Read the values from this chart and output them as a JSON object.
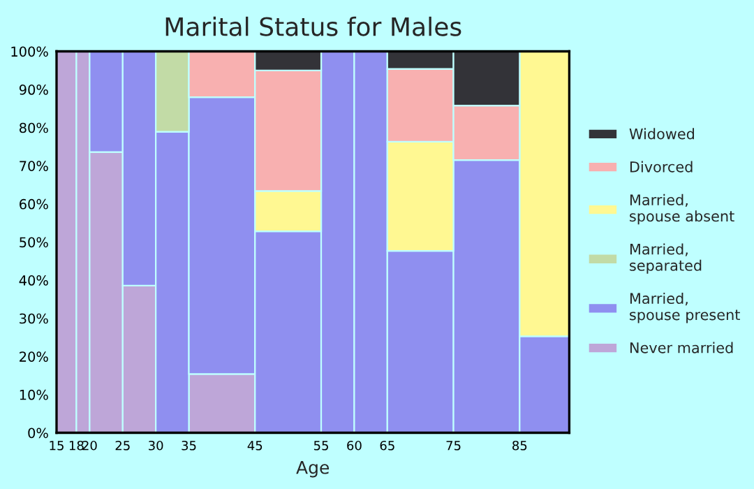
{
  "chart_data": {
    "type": "bar",
    "title": "Marital Status for Males",
    "xlabel": "Age",
    "stacked": true,
    "x": [
      16.5,
      19,
      22.5,
      27.5,
      32.5,
      40,
      50,
      57.5,
      62.5,
      70,
      80,
      88.75
    ],
    "xlim": [
      15,
      92.5
    ],
    "xticks": [
      15,
      18,
      20,
      25,
      30,
      35,
      45,
      55,
      60,
      65,
      75,
      85
    ],
    "ylim": [
      0,
      100
    ],
    "yticks": [
      {
        "value": 0,
        "label": "0%"
      },
      {
        "value": 10,
        "label": "10%"
      },
      {
        "value": 20,
        "label": "20%"
      },
      {
        "value": 30,
        "label": "30%"
      },
      {
        "value": 40,
        "label": "40%"
      },
      {
        "value": 50,
        "label": "50%"
      },
      {
        "value": 60,
        "label": "60%"
      },
      {
        "value": 70,
        "label": "70%"
      },
      {
        "value": 80,
        "label": "80%"
      },
      {
        "value": 90,
        "label": "90%"
      },
      {
        "value": 100,
        "label": "100%"
      }
    ],
    "legend": "right",
    "series": [
      {
        "name": "Never married",
        "color": "#bea6d8",
        "values": [
          100,
          100,
          73.6,
          38.6,
          null,
          15.4,
          null,
          null,
          null,
          null,
          null,
          null
        ]
      },
      {
        "name": "Married,\nspouse present",
        "color": "#8f8ff0",
        "values": [
          null,
          null,
          26.4,
          61.4,
          78.9,
          72.6,
          52.8,
          100,
          100,
          47.7,
          71.5,
          25.3
        ]
      },
      {
        "name": "Married,\nseparated",
        "color": "#c2dba6",
        "values": [
          null,
          null,
          null,
          null,
          21.1,
          null,
          null,
          null,
          null,
          null,
          null,
          null
        ]
      },
      {
        "name": "Married,\nspouse absent",
        "color": "#fff892",
        "values": [
          null,
          null,
          null,
          null,
          null,
          null,
          10.6,
          null,
          null,
          28.6,
          null,
          74.7
        ]
      },
      {
        "name": "Divorced",
        "color": "#f8b0b0",
        "values": [
          null,
          null,
          null,
          null,
          null,
          12.0,
          31.6,
          null,
          null,
          19.1,
          14.3,
          null
        ]
      },
      {
        "name": "Widowed",
        "color": "#333338",
        "values": [
          null,
          null,
          null,
          null,
          null,
          null,
          5.0,
          null,
          null,
          4.6,
          14.2,
          null
        ]
      }
    ]
  }
}
